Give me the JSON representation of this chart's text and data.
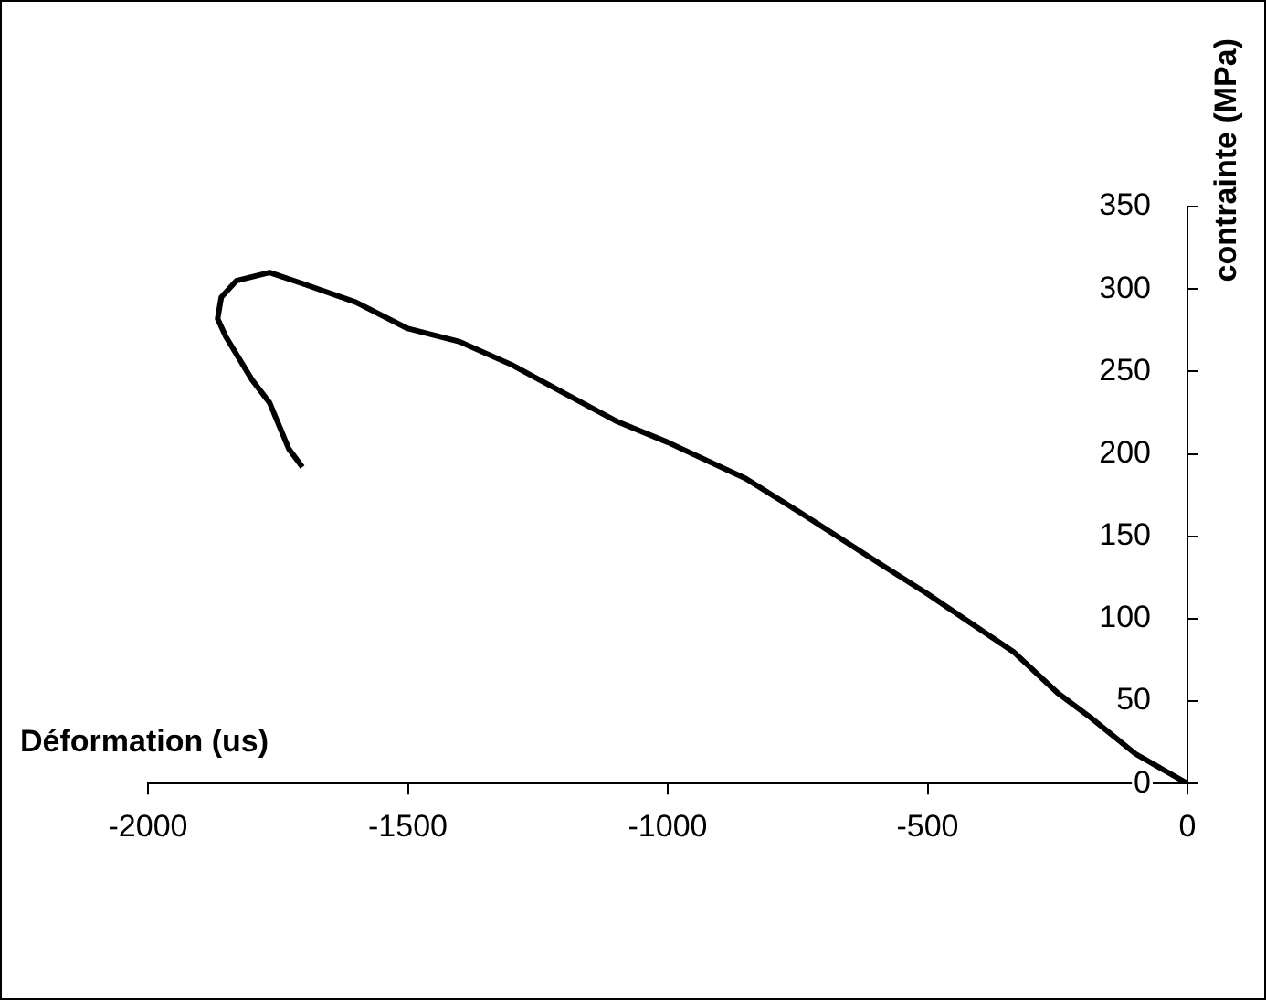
{
  "chart_data": {
    "type": "line",
    "xlabel": "Déformation (us)",
    "ylabel": "contrainte (MPa)",
    "x": [
      0,
      -100,
      -186,
      -250,
      -335,
      -420,
      -500,
      -600,
      -743,
      -850,
      -1000,
      -1100,
      -1200,
      -1300,
      -1400,
      -1500,
      -1600,
      -1700,
      -1766,
      -1830,
      -1859,
      -1866,
      -1850,
      -1800,
      -1766,
      -1729,
      -1703
    ],
    "series": [
      {
        "color": "#000000",
        "values": [
          0,
          18,
          40,
          55,
          80,
          98,
          115,
          135,
          164,
          185,
          207,
          220,
          237,
          254,
          268,
          276,
          292,
          303,
          310,
          305,
          295,
          282,
          271,
          245,
          231,
          203,
          192
        ]
      }
    ],
    "xlim": [
      -2000,
      0
    ],
    "ylim": [
      0,
      350
    ],
    "xticks": [
      -2000,
      -1500,
      -1000,
      -500,
      0
    ],
    "yticks": [
      0,
      50,
      100,
      150,
      200,
      250,
      300,
      350
    ],
    "grid": false,
    "legend": false,
    "marker": "none",
    "line_style": "solid"
  }
}
